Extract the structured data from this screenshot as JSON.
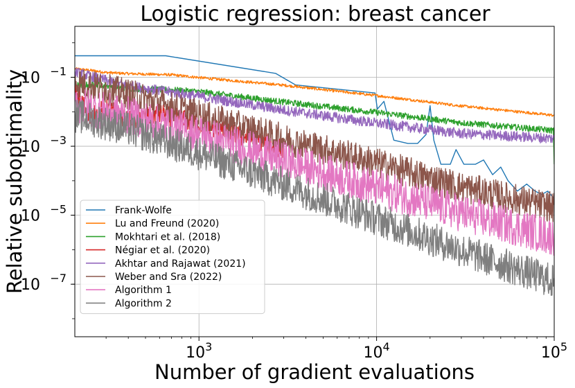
{
  "chart_data": {
    "type": "line",
    "title": "Logistic regression: breast cancer",
    "xlabel": "Number of gradient evaluations",
    "ylabel": "Relative suboptimality",
    "x_scale": "log",
    "y_scale": "log",
    "xlim": [
      200,
      100000
    ],
    "ylim": [
      3e-09,
      3
    ],
    "grid": true,
    "legend_position": "lower-left",
    "x_ticks": [
      {
        "value": 1000,
        "base": "10",
        "exp": "3"
      },
      {
        "value": 10000,
        "base": "10",
        "exp": "4"
      },
      {
        "value": 100000,
        "base": "10",
        "exp": "5"
      }
    ],
    "y_ticks": [
      {
        "value": 0.1,
        "base": "10",
        "exp": "−1"
      },
      {
        "value": 0.001,
        "base": "10",
        "exp": "−3"
      },
      {
        "value": 1e-05,
        "base": "10",
        "exp": "−5"
      },
      {
        "value": 1e-07,
        "base": "10",
        "exp": "−7"
      }
    ],
    "series": [
      {
        "name": "Frank-Wolfe",
        "color": "#1f77b4",
        "noise": 0,
        "points": [
          [
            200,
            0.42
          ],
          [
            650,
            0.42
          ],
          [
            2700,
            0.13
          ],
          [
            3500,
            0.06
          ],
          [
            9800,
            0.035
          ],
          [
            10100,
            0.012
          ],
          [
            11000,
            0.02
          ],
          [
            12500,
            0.0015
          ],
          [
            15000,
            0.0012
          ],
          [
            17000,
            0.0012
          ],
          [
            19000,
            0.0022
          ],
          [
            20000,
            0.015
          ],
          [
            21000,
            0.0015
          ],
          [
            23000,
            0.0003
          ],
          [
            26000,
            0.0003
          ],
          [
            28000,
            0.0008
          ],
          [
            31000,
            0.0003
          ],
          [
            36000,
            0.0003
          ],
          [
            40000,
            0.0004
          ],
          [
            45000,
            0.00015
          ],
          [
            50000,
            0.00025
          ],
          [
            55000,
            0.0001
          ],
          [
            62000,
            5e-05
          ],
          [
            70000,
            8e-05
          ],
          [
            78000,
            5e-05
          ],
          [
            85000,
            4e-05
          ],
          [
            92000,
            5e-05
          ],
          [
            100000,
            3e-05
          ]
        ]
      },
      {
        "name": "Lu and Freund (2020)",
        "color": "#ff7f0e",
        "noise": 0.08,
        "points": [
          [
            200,
            0.18
          ],
          [
            250,
            0.16
          ],
          [
            300,
            0.14
          ],
          [
            400,
            0.13
          ],
          [
            700,
            0.12
          ],
          [
            1000,
            0.1
          ],
          [
            3000,
            0.06
          ],
          [
            10000,
            0.03
          ],
          [
            30000,
            0.015
          ],
          [
            100000,
            0.008
          ]
        ]
      },
      {
        "name": "Mokhtari et al. (2018)",
        "color": "#2ca02c",
        "noise": 0.18,
        "points": [
          [
            200,
            0.06
          ],
          [
            260,
            0.065
          ],
          [
            400,
            0.05
          ],
          [
            700,
            0.045
          ],
          [
            1000,
            0.04
          ],
          [
            3000,
            0.02
          ],
          [
            10000,
            0.01
          ],
          [
            30000,
            0.005
          ],
          [
            99000,
            0.003
          ],
          [
            100000,
            0.0003
          ]
        ]
      },
      {
        "name": "Négiar et al. (2020)",
        "color": "#d62728",
        "noise": 0.6,
        "points": [
          [
            200,
            0.04
          ],
          [
            250,
            0.008
          ],
          [
            300,
            0.015
          ],
          [
            400,
            0.006
          ],
          [
            600,
            0.01
          ],
          [
            1000,
            0.005
          ],
          [
            3000,
            0.001
          ]
        ]
      },
      {
        "name": "Akhtar and Rajawat (2021)",
        "color": "#9467bd",
        "noise": 0.3,
        "points": [
          [
            200,
            0.15
          ],
          [
            400,
            0.06
          ],
          [
            1000,
            0.03
          ],
          [
            3000,
            0.012
          ],
          [
            10000,
            0.005
          ],
          [
            30000,
            0.0025
          ],
          [
            100000,
            0.0018
          ]
        ]
      },
      {
        "name": "Weber and Sra (2022)",
        "color": "#8c564b",
        "noise": 0.9,
        "points": [
          [
            200,
            0.09
          ],
          [
            400,
            0.04
          ],
          [
            1000,
            0.01
          ],
          [
            3000,
            0.002
          ],
          [
            10000,
            0.0004
          ],
          [
            30000,
            8e-05
          ],
          [
            100000,
            2e-05
          ]
        ]
      },
      {
        "name": "Algorithm 1",
        "color": "#e377c2",
        "noise": 1.1,
        "points": [
          [
            200,
            0.02
          ],
          [
            400,
            0.01
          ],
          [
            1000,
            0.003
          ],
          [
            3000,
            0.0005
          ],
          [
            10000,
            8e-05
          ],
          [
            30000,
            1.5e-05
          ],
          [
            100000,
            3e-06
          ]
        ]
      },
      {
        "name": "Algorithm 2",
        "color": "#7f7f7f",
        "noise": 1.0,
        "points": [
          [
            200,
            0.01
          ],
          [
            400,
            0.004
          ],
          [
            1000,
            0.0008
          ],
          [
            3000,
            0.0001
          ],
          [
            10000,
            1e-05
          ],
          [
            30000,
            1.2e-06
          ],
          [
            100000,
            1.5e-07
          ]
        ]
      }
    ]
  }
}
